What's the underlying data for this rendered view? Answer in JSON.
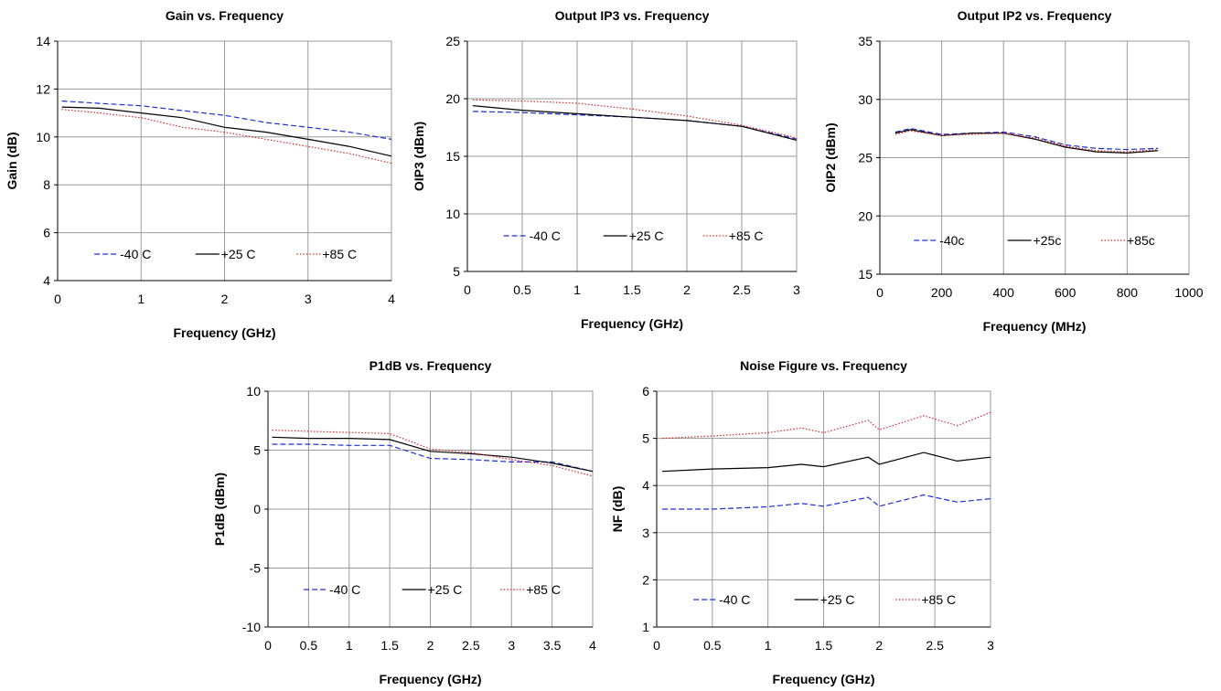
{
  "chart_data": [
    {
      "type": "line",
      "title": "Gain vs. Frequency",
      "xlabel": "Frequency (GHz)",
      "ylabel": "Gain (dB)",
      "xlim": [
        0,
        4
      ],
      "ylim": [
        4,
        14
      ],
      "xticks": [
        "0",
        "1",
        "2",
        "3",
        "4"
      ],
      "yticks": [
        "4",
        "6",
        "8",
        "10",
        "12",
        "14"
      ],
      "grid": true,
      "legend": "bottom-inside",
      "x": [
        0.05,
        0.5,
        1,
        1.5,
        2,
        2.5,
        3,
        3.5,
        4
      ],
      "series": [
        {
          "name": "-40 C",
          "color": "#1f2fd6",
          "dash": "dashed",
          "values": [
            11.5,
            11.4,
            11.3,
            11.1,
            10.9,
            10.6,
            10.4,
            10.2,
            9.9
          ]
        },
        {
          "name": "+25 C",
          "color": "#000000",
          "dash": "solid",
          "values": [
            11.25,
            11.2,
            11.0,
            10.8,
            10.4,
            10.2,
            9.9,
            9.6,
            9.2
          ]
        },
        {
          "name": "+85 C",
          "color": "#d62a2a",
          "dash": "dotted",
          "values": [
            11.15,
            11.0,
            10.8,
            10.4,
            10.2,
            9.9,
            9.6,
            9.3,
            8.9
          ]
        }
      ]
    },
    {
      "type": "line",
      "title": "Output IP3 vs. Frequency",
      "xlabel": "Frequency (GHz)",
      "ylabel": "OIP3 (dBm)",
      "xlim": [
        0,
        3
      ],
      "ylim": [
        5,
        25
      ],
      "xticks": [
        "0",
        "0.5",
        "1",
        "1.5",
        "2",
        "2.5",
        "3"
      ],
      "yticks": [
        "5",
        "10",
        "15",
        "20",
        "25"
      ],
      "grid": true,
      "legend": "bottom-inside",
      "x": [
        0.05,
        0.5,
        1,
        1.5,
        2,
        2.5,
        3
      ],
      "series": [
        {
          "name": "-40 C",
          "color": "#1f2fd6",
          "dash": "dashed",
          "values": [
            18.9,
            18.8,
            18.6,
            18.4,
            18.1,
            17.6,
            16.5
          ]
        },
        {
          "name": "+25 C",
          "color": "#000000",
          "dash": "solid",
          "values": [
            19.4,
            19.0,
            18.7,
            18.4,
            18.1,
            17.6,
            16.4
          ]
        },
        {
          "name": "+85 C",
          "color": "#d62a2a",
          "dash": "dotted",
          "values": [
            19.9,
            19.8,
            19.6,
            19.1,
            18.5,
            17.7,
            16.6
          ]
        }
      ]
    },
    {
      "type": "line",
      "title": "Output IP2 vs. Frequency",
      "xlabel": "Frequency (MHz)",
      "ylabel": "OIP2 (dBm)",
      "xlim": [
        0,
        1000
      ],
      "ylim": [
        15,
        35
      ],
      "xticks": [
        "0",
        "200",
        "400",
        "600",
        "800",
        "1000"
      ],
      "yticks": [
        "15",
        "20",
        "25",
        "30",
        "35"
      ],
      "grid": true,
      "legend": "bottom-inside",
      "x": [
        50,
        100,
        200,
        300,
        400,
        500,
        600,
        700,
        800,
        900
      ],
      "series": [
        {
          "name": "-40c",
          "color": "#1f2fd6",
          "dash": "dashed",
          "values": [
            27.2,
            27.5,
            27.0,
            27.1,
            27.2,
            26.8,
            26.1,
            25.8,
            25.7,
            25.8
          ]
        },
        {
          "name": "+25c",
          "color": "#000000",
          "dash": "solid",
          "values": [
            27.1,
            27.4,
            26.9,
            27.1,
            27.1,
            26.6,
            25.9,
            25.5,
            25.4,
            25.6
          ]
        },
        {
          "name": "+85c",
          "color": "#d62a2a",
          "dash": "dotted",
          "values": [
            27.0,
            27.3,
            26.9,
            27.0,
            27.1,
            26.7,
            26.0,
            25.6,
            25.5,
            25.7
          ]
        }
      ]
    },
    {
      "type": "line",
      "title": "P1dB vs. Frequency",
      "xlabel": "Frequency (GHz)",
      "ylabel": "P1dB (dBm)",
      "xlim": [
        0,
        4
      ],
      "ylim": [
        -10,
        10
      ],
      "xticks": [
        "0",
        "0.5",
        "1",
        "1.5",
        "2",
        "2.5",
        "3",
        "3.5",
        "4"
      ],
      "yticks": [
        "-10",
        "-5",
        "0",
        "5",
        "10"
      ],
      "grid": true,
      "legend": "bottom-inside",
      "x": [
        0.05,
        0.5,
        1,
        1.5,
        2,
        2.5,
        3,
        3.5,
        4
      ],
      "series": [
        {
          "name": "-40 C",
          "color": "#1f2fd6",
          "dash": "dashed",
          "values": [
            5.5,
            5.5,
            5.4,
            5.4,
            4.3,
            4.2,
            4.0,
            4.0,
            3.2
          ]
        },
        {
          "name": "+25 C",
          "color": "#000000",
          "dash": "solid",
          "values": [
            6.1,
            6.0,
            6.0,
            5.9,
            4.9,
            4.7,
            4.4,
            3.9,
            3.2
          ]
        },
        {
          "name": "+85 C",
          "color": "#d62a2a",
          "dash": "dotted",
          "values": [
            6.7,
            6.6,
            6.5,
            6.4,
            5.1,
            4.8,
            4.2,
            3.7,
            2.8
          ]
        }
      ]
    },
    {
      "type": "line",
      "title": "Noise Figure vs. Frequency",
      "xlabel": "Frequency (GHz)",
      "ylabel": "NF (dB)",
      "xlim": [
        0,
        3
      ],
      "ylim": [
        1,
        6
      ],
      "xticks": [
        "0",
        "0.5",
        "1",
        "1.5",
        "2",
        "2.5",
        "3"
      ],
      "yticks": [
        "1",
        "2",
        "3",
        "4",
        "5",
        "6"
      ],
      "grid": true,
      "legend": "bottom-inside",
      "x": [
        0.05,
        0.5,
        1,
        1.3,
        1.5,
        1.9,
        2.0,
        2.4,
        2.7,
        3.0
      ],
      "series": [
        {
          "name": "-40 C",
          "color": "#1f2fd6",
          "dash": "dashed",
          "values": [
            3.5,
            3.5,
            3.55,
            3.62,
            3.56,
            3.75,
            3.56,
            3.8,
            3.65,
            3.72
          ]
        },
        {
          "name": "+25 C",
          "color": "#000000",
          "dash": "solid",
          "values": [
            4.3,
            4.35,
            4.38,
            4.45,
            4.4,
            4.6,
            4.45,
            4.7,
            4.52,
            4.6
          ]
        },
        {
          "name": "+85 C",
          "color": "#d62a2a",
          "dash": "dotted",
          "values": [
            5.0,
            5.05,
            5.12,
            5.22,
            5.12,
            5.38,
            5.18,
            5.48,
            5.27,
            5.55
          ]
        }
      ]
    }
  ]
}
